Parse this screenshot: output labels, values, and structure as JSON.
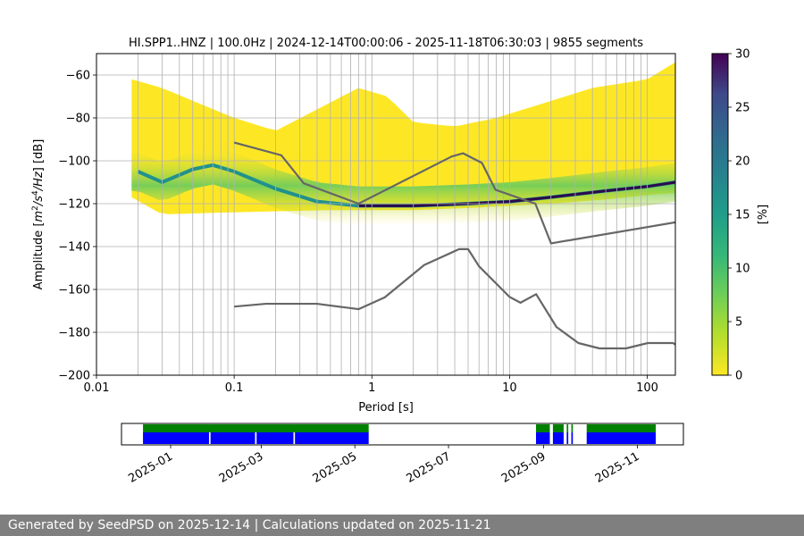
{
  "chart_data": [
    {
      "type": "heatmap",
      "title": "HI.SPP1..HNZ | 100.0Hz | 2024-12-14T00:00:06 - 2025-11-18T06:30:03 | 9855 segments",
      "xlabel": "Period [s]",
      "ylabel_parts": [
        "Amplitude [",
        "m",
        "2",
        "/s",
        "4",
        "/Hz",
        "] [dB]"
      ],
      "x_scale": "log",
      "xlim": [
        0.01,
        160
      ],
      "ylim": [
        -200,
        -50
      ],
      "x_ticks": [
        0.01,
        0.1,
        1,
        10,
        100
      ],
      "x_tick_labels": [
        "0.01",
        "0.1",
        "1",
        "10",
        "100"
      ],
      "y_ticks": [
        -200,
        -180,
        -160,
        -140,
        -120,
        -100,
        -80,
        -60
      ],
      "y_tick_labels": [
        "−200",
        "−180",
        "−160",
        "−140",
        "−120",
        "−100",
        "−80",
        "−60"
      ],
      "grid": true,
      "colorbar": {
        "label": "[%]",
        "range": [
          0,
          30
        ],
        "ticks": [
          0,
          5,
          10,
          15,
          20,
          25,
          30
        ],
        "tick_labels": [
          "0",
          "5",
          "10",
          "15",
          "20",
          "25",
          "30"
        ],
        "colormap": "viridis_r"
      },
      "density_mode": [
        [
          0.02,
          -105
        ],
        [
          0.03,
          -110
        ],
        [
          0.05,
          -104
        ],
        [
          0.07,
          -102
        ],
        [
          0.1,
          -105
        ],
        [
          0.2,
          -113
        ],
        [
          0.4,
          -119
        ],
        [
          0.8,
          -121
        ],
        [
          2,
          -121
        ],
        [
          5,
          -120
        ],
        [
          10,
          -119
        ],
        [
          20,
          -117
        ],
        [
          50,
          -114
        ],
        [
          100,
          -112
        ],
        [
          160,
          -110
        ]
      ],
      "density_upper": [
        [
          0.018,
          -62
        ],
        [
          0.03,
          -66
        ],
        [
          0.05,
          -72
        ],
        [
          0.1,
          -80
        ],
        [
          0.2,
          -86
        ],
        [
          0.4,
          -76
        ],
        [
          0.8,
          -66
        ],
        [
          1.3,
          -70
        ],
        [
          2,
          -82
        ],
        [
          4,
          -84
        ],
        [
          8,
          -80
        ],
        [
          16,
          -74
        ],
        [
          40,
          -66
        ],
        [
          100,
          -62
        ],
        [
          160,
          -54
        ]
      ],
      "density_lower": [
        [
          0.018,
          -117
        ],
        [
          0.03,
          -125
        ],
        [
          0.1,
          -124
        ],
        [
          0.5,
          -123
        ],
        [
          2,
          -123
        ],
        [
          5,
          -122
        ],
        [
          10,
          -121
        ],
        [
          20,
          -120
        ],
        [
          50,
          -118
        ],
        [
          100,
          -116
        ],
        [
          160,
          -115
        ]
      ],
      "series": [
        {
          "name": "",
          "color": "#666666",
          "x": [
            0.1,
            0.17,
            0.4,
            0.8,
            1.24,
            2.4,
            4.3,
            5,
            6,
            10,
            12,
            15.6,
            21.9,
            31.6,
            45,
            70,
            101,
            154,
            160
          ],
          "y": [
            -168,
            -166.7,
            -166.7,
            -169.2,
            -163.7,
            -148.6,
            -141.2,
            -141.2,
            -149.2,
            -163.5,
            -166.2,
            -162.2,
            -177.5,
            -185,
            -187.5,
            -187.5,
            -185,
            -185,
            -185.7
          ]
        },
        {
          "name": "",
          "color": "#666666",
          "x": [
            0.1,
            0.22,
            0.32,
            0.8,
            3.8,
            4.6,
            6.3,
            7.9,
            15.4,
            20,
            160
          ],
          "y": [
            -91.5,
            -97.4,
            -110.5,
            -120,
            -98,
            -96.5,
            -101,
            -113.5,
            -120,
            -138.5,
            -128.7
          ]
        }
      ]
    },
    {
      "type": "timeline",
      "x_tick_labels": [
        "2025-01",
        "2025-03",
        "2025-05",
        "2025-07",
        "2025-09",
        "2025-11"
      ],
      "x_ticks": [
        "2025-01-01",
        "2025-03-01",
        "2025-05-01",
        "2025-07-01",
        "2025-09-01",
        "2025-11-01"
      ],
      "xlim": [
        "2024-11-30",
        "2025-12-01"
      ],
      "rows": [
        {
          "name": "",
          "color": "#008000",
          "spans": [
            [
              "2024-12-14",
              "2025-05-10"
            ],
            [
              "2025-08-27",
              "2025-09-05"
            ],
            [
              "2025-09-07",
              "2025-09-14"
            ],
            [
              "2025-09-16",
              "2025-09-17"
            ],
            [
              "2025-09-19",
              "2025-09-20"
            ],
            [
              "2025-09-29",
              "2025-11-13"
            ]
          ]
        },
        {
          "name": "",
          "color": "#0000ff",
          "spans": [
            [
              "2024-12-14",
              "2025-01-26"
            ],
            [
              "2025-01-27",
              "2025-02-25"
            ],
            [
              "2025-02-26",
              "2025-03-22"
            ],
            [
              "2025-03-23",
              "2025-05-10"
            ],
            [
              "2025-08-27",
              "2025-09-05"
            ],
            [
              "2025-09-07",
              "2025-09-14"
            ],
            [
              "2025-09-16",
              "2025-09-17"
            ],
            [
              "2025-09-19",
              "2025-09-20"
            ],
            [
              "2025-09-29",
              "2025-11-13"
            ]
          ]
        }
      ]
    }
  ],
  "footer": {
    "text": "Generated by SeedPSD on 2025-12-14 | Calculations updated on 2025-11-21"
  }
}
